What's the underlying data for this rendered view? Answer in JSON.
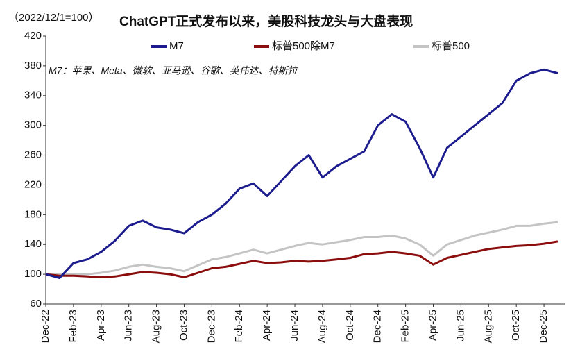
{
  "chart_data": {
    "type": "line",
    "title": "ChatGPT正式发布以来，美股科技龙头与大盘表现",
    "subtitle": "（2022/12/1=100）",
    "annotation": "M7：苹果、Meta、微软、亚马逊、谷歌、英伟达、特斯拉",
    "categories": [
      "Dec-22",
      null,
      "Feb-23",
      null,
      "Apr-23",
      null,
      "Jun-23",
      null,
      "Aug-23",
      null,
      "Oct-23",
      null,
      "Dec-23",
      null,
      "Feb-24",
      null,
      "Apr-24",
      null,
      "Jun-24",
      null,
      "Aug-24",
      null,
      "Oct-24",
      null,
      "Dec-24",
      null,
      "Feb-25",
      null,
      "Apr-25",
      null,
      "Jun-25",
      null,
      "Aug-25",
      null,
      "Oct-25",
      null,
      "Dec-25",
      null
    ],
    "series": [
      {
        "name": "M7",
        "color": "#1c1c8e",
        "values": [
          100,
          95,
          115,
          120,
          130,
          145,
          165,
          172,
          163,
          160,
          155,
          170,
          180,
          195,
          215,
          222,
          205,
          225,
          245,
          260,
          230,
          245,
          255,
          265,
          300,
          315,
          305,
          270,
          230,
          270,
          285,
          300,
          315,
          330,
          360,
          370,
          375,
          370
        ]
      },
      {
        "name": "标普500除M7",
        "color": "#8b0d0d",
        "values": [
          100,
          98,
          98,
          97,
          96,
          97,
          100,
          103,
          102,
          100,
          96,
          102,
          108,
          110,
          114,
          118,
          115,
          116,
          118,
          117,
          118,
          120,
          122,
          127,
          128,
          130,
          128,
          125,
          113,
          122,
          126,
          130,
          134,
          136,
          138,
          139,
          141,
          144
        ]
      },
      {
        "name": "标普500",
        "color": "#c4c4c4",
        "values": [
          100,
          100,
          100,
          100,
          102,
          105,
          110,
          113,
          110,
          108,
          104,
          112,
          120,
          123,
          128,
          133,
          128,
          133,
          138,
          142,
          140,
          143,
          146,
          150,
          150,
          152,
          148,
          140,
          125,
          140,
          146,
          152,
          156,
          160,
          165,
          165,
          168,
          170
        ]
      }
    ],
    "ylim": [
      60,
      420
    ],
    "yticks": [
      60,
      100,
      140,
      180,
      220,
      260,
      300,
      340,
      380,
      420
    ],
    "grid": false
  }
}
